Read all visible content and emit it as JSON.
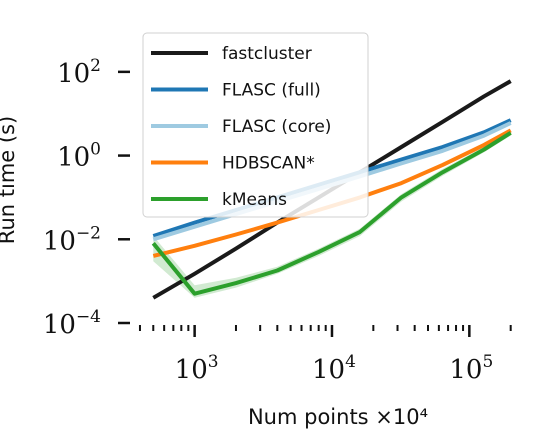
{
  "chart_data": {
    "type": "line",
    "xscale": "log",
    "yscale": "log",
    "xlabel": "Num points ×10⁴",
    "ylabel": "Run time (s)",
    "xlim": [
      350,
      250000
    ],
    "ylim": [
      0.0001,
      1000
    ],
    "x_ticks": [
      {
        "value": 1000,
        "base": "10",
        "exp": "3"
      },
      {
        "value": 10000,
        "base": "10",
        "exp": "4"
      },
      {
        "value": 100000,
        "base": "10",
        "exp": "5"
      }
    ],
    "y_ticks": [
      {
        "value": 0.0001,
        "base": "10",
        "exp": "−4"
      },
      {
        "value": 0.01,
        "base": "10",
        "exp": "−2"
      },
      {
        "value": 1,
        "base": "10",
        "exp": "0"
      },
      {
        "value": 100,
        "base": "10",
        "exp": "2"
      }
    ],
    "grid": false,
    "legend_position": "top-left",
    "x": [
      500,
      1000,
      2000,
      4000,
      8000,
      16000,
      32000,
      64000,
      128000,
      200000
    ],
    "series": [
      {
        "name": "fastcluster",
        "color": "#1a1a1a",
        "values": [
          0.0004,
          0.0015,
          0.006,
          0.025,
          0.1,
          0.4,
          1.6,
          6.4,
          26,
          60
        ]
      },
      {
        "name": "FLASC (full)",
        "color": "#1f77b4",
        "values": [
          0.012,
          0.025,
          0.05,
          0.1,
          0.2,
          0.4,
          0.8,
          1.6,
          3.6,
          7.0
        ]
      },
      {
        "name": "FLASC (core)",
        "color": "#9ecae1",
        "values": [
          0.01,
          0.02,
          0.04,
          0.08,
          0.16,
          0.32,
          0.65,
          1.3,
          3.0,
          6.0
        ]
      },
      {
        "name": "HDBSCAN*",
        "color": "#ff7f0e",
        "values": [
          0.004,
          0.007,
          0.013,
          0.025,
          0.05,
          0.1,
          0.22,
          0.6,
          1.8,
          4.0
        ]
      },
      {
        "name": "kMeans",
        "color": "#2ca02c",
        "values": [
          0.008,
          0.0005,
          0.0009,
          0.0018,
          0.005,
          0.015,
          0.1,
          0.4,
          1.4,
          3.5
        ],
        "band_low": [
          0.003,
          0.0004,
          0.0007,
          0.0015,
          0.004,
          0.012,
          0.08,
          0.33,
          1.2,
          3.0
        ],
        "band_high": [
          0.012,
          0.0008,
          0.0012,
          0.0022,
          0.006,
          0.018,
          0.12,
          0.48,
          1.6,
          4.0
        ]
      }
    ]
  }
}
